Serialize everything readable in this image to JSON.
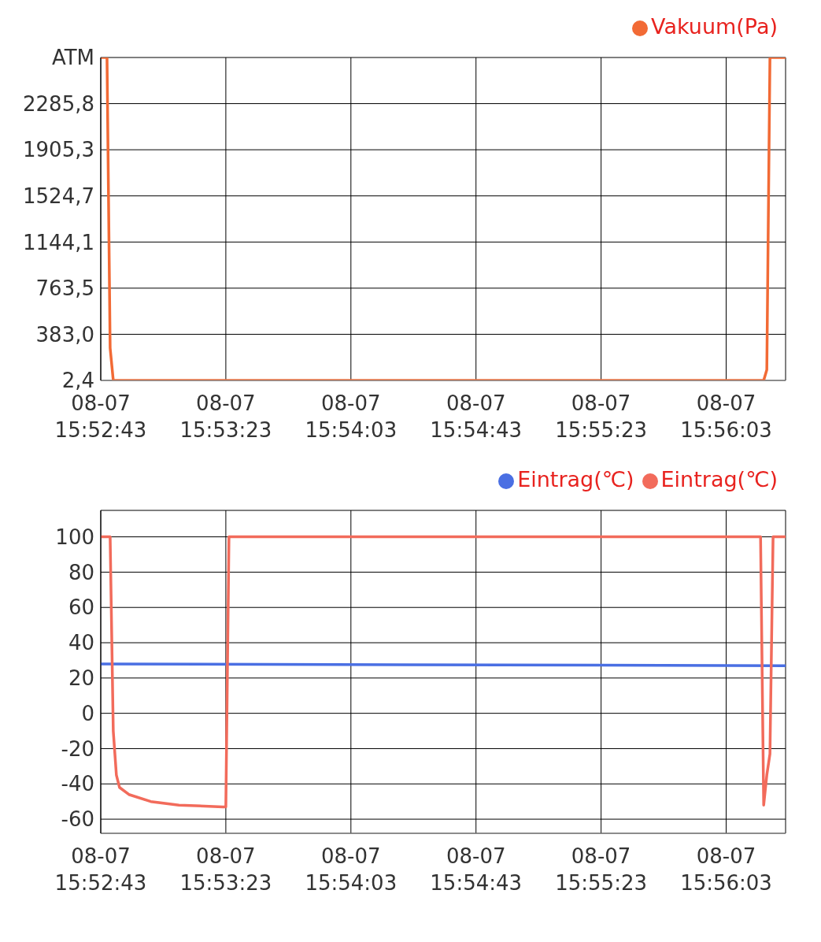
{
  "chart_data": [
    {
      "type": "line",
      "legend": "top right",
      "grid": true,
      "marker": "none",
      "line_style": "solid",
      "xlim": [
        "--08-07T15:52:43",
        "--08-07T15:56:22"
      ],
      "xticks": [
        {
          "value": "--08-07T15:52:43",
          "label": "08-07\n15:52:43"
        },
        {
          "value": "--08-07T15:53:23",
          "label": "08-07\n15:53:23"
        },
        {
          "value": "--08-07T15:54:03",
          "label": "08-07\n15:54:03"
        },
        {
          "value": "--08-07T15:54:43",
          "label": "08-07\n15:54:43"
        },
        {
          "value": "--08-07T15:55:23",
          "label": "08-07\n15:55:23"
        },
        {
          "value": "--08-07T15:56:03",
          "label": "08-07\n15:56:03"
        }
      ],
      "ylim": [
        2.4,
        2666.4
      ],
      "yticks": [
        {
          "value": 2.4,
          "label": "2,4"
        },
        {
          "value": 383.0,
          "label": "383,0"
        },
        {
          "value": 763.5,
          "label": "763,5"
        },
        {
          "value": 1144.1,
          "label": "1144,1"
        },
        {
          "value": 1524.7,
          "label": "1524,7"
        },
        {
          "value": 1905.3,
          "label": "1905,3"
        },
        {
          "value": 2285.8,
          "label": "2285,8"
        },
        {
          "value": 2666.4,
          "label": "ATM"
        }
      ],
      "series": [
        {
          "name": "Vakuum(Pa)",
          "color": "#f26a35",
          "x": [
            "--08-07T15:52:43",
            "--08-07T15:52:45",
            "--08-07T15:52:46",
            "--08-07T15:52:47",
            "--08-07T15:56:15",
            "--08-07T15:56:16",
            "--08-07T15:56:17",
            "--08-07T15:56:22"
          ],
          "values": [
            2666,
            2666,
            270,
            2.4,
            2.4,
            90,
            2666,
            2666
          ]
        }
      ]
    },
    {
      "type": "line",
      "legend": "top right",
      "grid": true,
      "marker": "none",
      "line_style": "solid",
      "xlim": [
        "--08-07T15:52:43",
        "--08-07T15:56:22"
      ],
      "xticks": [
        {
          "value": "--08-07T15:52:43",
          "label": "08-07\n15:52:43"
        },
        {
          "value": "--08-07T15:53:23",
          "label": "08-07\n15:53:23"
        },
        {
          "value": "--08-07T15:54:03",
          "label": "08-07\n15:54:03"
        },
        {
          "value": "--08-07T15:54:43",
          "label": "08-07\n15:54:43"
        },
        {
          "value": "--08-07T15:55:23",
          "label": "08-07\n15:55:23"
        },
        {
          "value": "--08-07T15:56:03",
          "label": "08-07\n15:56:03"
        }
      ],
      "ylim": [
        -68,
        115
      ],
      "yticks": [
        -60,
        -40,
        -20,
        0,
        20,
        40,
        60,
        80,
        100
      ],
      "series": [
        {
          "name": "Eintrag(℃)",
          "color": "#4a6fe3",
          "x": [
            "--08-07T15:52:43",
            "--08-07T15:56:22"
          ],
          "values": [
            28,
            27
          ]
        },
        {
          "name": "Eintrag(℃)",
          "color": "#f26b5b",
          "x": [
            "--08-07T15:52:43",
            "--08-07T15:52:46",
            "--08-07T15:52:47",
            "--08-07T15:52:48",
            "--08-07T15:52:49",
            "--08-07T15:52:52",
            "--08-07T15:52:59",
            "--08-07T15:53:08",
            "--08-07T15:53:22",
            "--08-07T15:53:23",
            "--08-07T15:53:24",
            "--08-07T15:56:14",
            "--08-07T15:56:15",
            "--08-07T15:56:16",
            "--08-07T15:56:17",
            "--08-07T15:56:18",
            "--08-07T15:56:22"
          ],
          "values": [
            100,
            100,
            -10,
            -35,
            -42,
            -46,
            -50,
            -52,
            -53,
            -53,
            100,
            100,
            -52,
            -35,
            -23,
            100,
            100
          ]
        }
      ]
    }
  ]
}
